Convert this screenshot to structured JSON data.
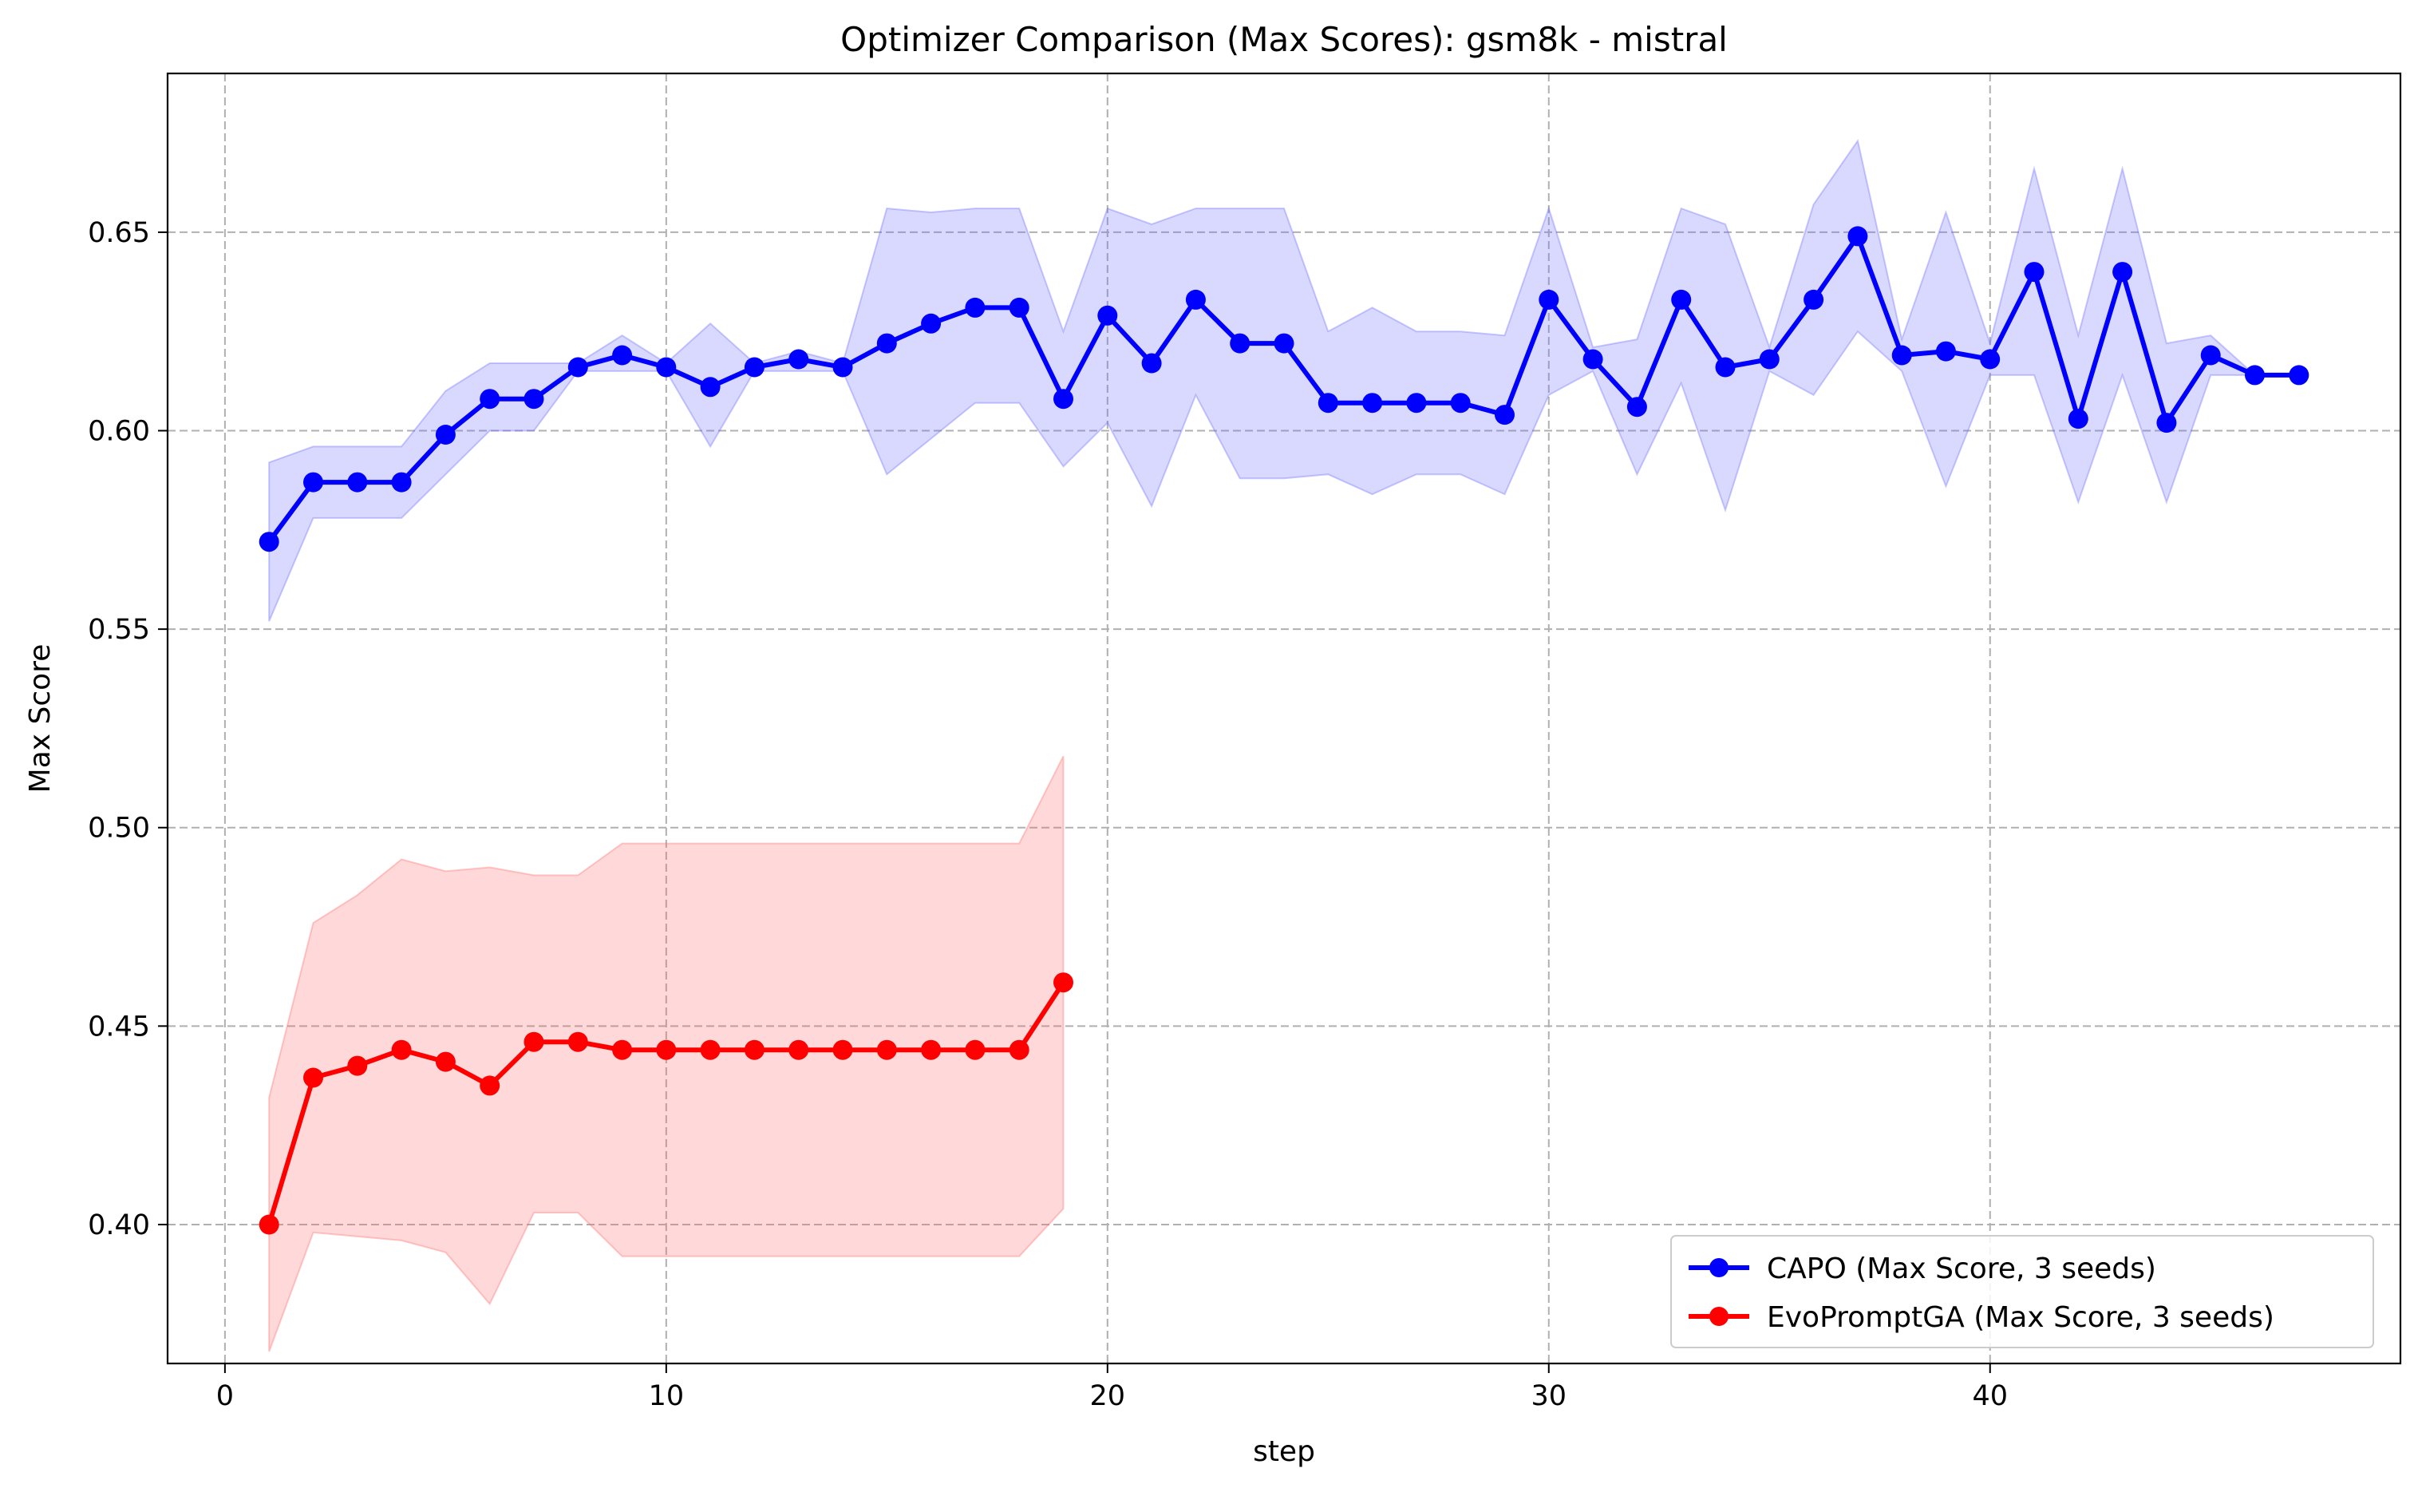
{
  "chart_data": {
    "type": "line",
    "title": "Optimizer Comparison (Max Scores): gsm8k - mistral",
    "xlabel": "step",
    "ylabel": "Max Score",
    "xlim": [
      -1.3,
      49.3
    ],
    "ylim": [
      0.365,
      0.69
    ],
    "xticks": [
      0,
      10,
      20,
      30,
      40
    ],
    "yticks": [
      0.4,
      0.45,
      0.5,
      0.55,
      0.6,
      0.65
    ],
    "xtick_labels": [
      "0",
      "10",
      "20",
      "30",
      "40"
    ],
    "ytick_labels": [
      "0.40",
      "0.45",
      "0.50",
      "0.55",
      "0.60",
      "0.65"
    ],
    "grid": true,
    "legend_position": "lower-right",
    "series": [
      {
        "name": "CAPO (Max Score, 3 seeds)",
        "color": "#0000ff",
        "band_color": "#6666ff",
        "x": [
          1,
          2,
          3,
          4,
          5,
          6,
          7,
          8,
          9,
          10,
          11,
          12,
          13,
          14,
          15,
          16,
          17,
          18,
          19,
          20,
          21,
          22,
          23,
          24,
          25,
          26,
          27,
          28,
          29,
          30,
          31,
          32,
          33,
          34,
          35,
          36,
          37,
          38,
          39,
          40,
          41,
          42,
          43,
          44,
          45,
          46,
          47
        ],
        "y": [
          0.572,
          0.587,
          0.587,
          0.587,
          0.599,
          0.608,
          0.608,
          0.616,
          0.619,
          0.616,
          0.611,
          0.616,
          0.618,
          0.616,
          0.622,
          0.627,
          0.631,
          0.631,
          0.608,
          0.629,
          0.617,
          0.633,
          0.622,
          0.622,
          0.607,
          0.607,
          0.607,
          0.607,
          0.604,
          0.633,
          0.618,
          0.606,
          0.633,
          0.616,
          0.618,
          0.633,
          0.649,
          0.619,
          0.62,
          0.618,
          0.64,
          0.603,
          0.64,
          0.602,
          0.619,
          0.614,
          0.614
        ],
        "lower": [
          0.552,
          0.578,
          0.578,
          0.578,
          0.589,
          0.6,
          0.6,
          0.615,
          0.615,
          0.615,
          0.596,
          0.615,
          0.615,
          0.615,
          0.589,
          0.598,
          0.607,
          0.607,
          0.591,
          0.602,
          0.581,
          0.609,
          0.588,
          0.588,
          0.589,
          0.584,
          0.589,
          0.589,
          0.584,
          0.609,
          0.615,
          0.589,
          0.612,
          0.58,
          0.615,
          0.609,
          0.625,
          0.615,
          0.586,
          0.614,
          0.614,
          0.582,
          0.614,
          0.582,
          0.614,
          0.614,
          0.614
        ],
        "upper": [
          0.592,
          0.596,
          0.596,
          0.596,
          0.61,
          0.617,
          0.617,
          0.617,
          0.624,
          0.617,
          0.627,
          0.617,
          0.62,
          0.617,
          0.656,
          0.655,
          0.656,
          0.656,
          0.625,
          0.656,
          0.652,
          0.656,
          0.656,
          0.656,
          0.625,
          0.631,
          0.625,
          0.625,
          0.624,
          0.656,
          0.621,
          0.623,
          0.656,
          0.652,
          0.621,
          0.657,
          0.673,
          0.623,
          0.655,
          0.622,
          0.666,
          0.624,
          0.666,
          0.622,
          0.624,
          0.614,
          0.614
        ]
      },
      {
        "name": "EvoPromptGA (Max Score, 3 seeds)",
        "color": "#ff0000",
        "band_color": "#ff6666",
        "x": [
          1,
          2,
          3,
          4,
          5,
          6,
          7,
          8,
          9,
          10,
          11,
          12,
          13,
          14,
          15,
          16,
          17,
          18,
          19
        ],
        "y": [
          0.4,
          0.437,
          0.44,
          0.444,
          0.441,
          0.435,
          0.446,
          0.446,
          0.444,
          0.444,
          0.444,
          0.444,
          0.444,
          0.444,
          0.444,
          0.444,
          0.444,
          0.444,
          0.461
        ],
        "lower": [
          0.368,
          0.398,
          0.397,
          0.396,
          0.393,
          0.38,
          0.403,
          0.403,
          0.392,
          0.392,
          0.392,
          0.392,
          0.392,
          0.392,
          0.392,
          0.392,
          0.392,
          0.392,
          0.404
        ],
        "upper": [
          0.432,
          0.476,
          0.483,
          0.492,
          0.489,
          0.49,
          0.488,
          0.488,
          0.496,
          0.496,
          0.496,
          0.496,
          0.496,
          0.496,
          0.496,
          0.496,
          0.496,
          0.496,
          0.518
        ]
      }
    ]
  }
}
